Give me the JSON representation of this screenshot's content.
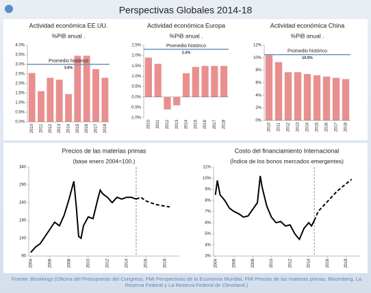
{
  "slide_title": "Perspectivas Globales 2014-18",
  "source": "Fuente: Brookings (Oficina del Presupuesto del Congreso, FMI Perspectivas de la Economía Mundial, FMI Precios de las materias primas, Bloomberg, La Reserva Federal y La Reserva Federal de Cleveland.)",
  "chart_data": [
    {
      "type": "bar",
      "title": "Actividad económica EE.UU.",
      "subtitle": "%PiB anual .",
      "categories": [
        "2010",
        "2011",
        "2012",
        "2013",
        "2014",
        "2015",
        "2016",
        "2017",
        "2018"
      ],
      "values": [
        2.55,
        1.6,
        2.3,
        2.2,
        1.45,
        3.45,
        3.45,
        2.75,
        2.3
      ],
      "color": "#e8908f",
      "ylim": [
        0,
        4
      ],
      "yticks": [
        {
          "value": 0,
          "label": "0.0%"
        },
        {
          "value": 0.5,
          "label": "0.5%"
        },
        {
          "value": 1,
          "label": "1.0%"
        },
        {
          "value": 1.5,
          "label": "1.5%"
        },
        {
          "value": 2,
          "label": "2.0%"
        },
        {
          "value": 2.5,
          "label": "2.5%"
        },
        {
          "value": 3,
          "label": "3.0%"
        },
        {
          "value": 3.5,
          "label": "3.5%"
        },
        {
          "value": 4,
          "label": "4.0%"
        }
      ],
      "reference": {
        "value": 3.0,
        "label": "Promedio histórico",
        "value_label": "3.0%",
        "color": "#6f8fc4"
      }
    },
    {
      "type": "bar",
      "title": "Actividad económica Europa",
      "subtitle": "%PiB anual .",
      "categories": [
        "2010",
        "2011",
        "2012",
        "2013",
        "2014",
        "2015",
        "2016",
        "2017",
        "2018"
      ],
      "values": [
        1.9,
        1.6,
        -0.6,
        -0.4,
        1.15,
        1.45,
        1.5,
        1.5,
        1.5
      ],
      "color": "#e8908f",
      "ylim": [
        -1,
        2.5
      ],
      "yticks": [
        {
          "value": -1,
          "label": "-1.0%"
        },
        {
          "value": -0.5,
          "label": "-0.5%"
        },
        {
          "value": 0,
          "label": "0.0%"
        },
        {
          "value": 0.5,
          "label": "0.5%"
        },
        {
          "value": 1,
          "label": "1.0%"
        },
        {
          "value": 1.5,
          "label": "1.5%"
        },
        {
          "value": 2,
          "label": "2.0%"
        },
        {
          "value": 2.5,
          "label": "2.5%"
        }
      ],
      "reference": {
        "value": 2.3,
        "label": "Promedio histórico",
        "value_label": "2.3%",
        "color": "#6f8fc4"
      }
    },
    {
      "type": "bar",
      "title": "Actividad económica China",
      "subtitle": "%PiB anual .",
      "categories": [
        "2010",
        "2011",
        "2012",
        "2013",
        "2014",
        "2015",
        "2016",
        "2017",
        "2018"
      ],
      "values": [
        10.4,
        9.3,
        7.7,
        7.7,
        7.4,
        7.2,
        7.0,
        6.8,
        6.6
      ],
      "color": "#e8908f",
      "ylim": [
        0,
        12
      ],
      "yticks": [
        {
          "value": 0,
          "label": "0%"
        },
        {
          "value": 2,
          "label": "2%"
        },
        {
          "value": 4,
          "label": "4%"
        },
        {
          "value": 6,
          "label": "6%"
        },
        {
          "value": 8,
          "label": "8%"
        },
        {
          "value": 10,
          "label": "10%"
        },
        {
          "value": 12,
          "label": "12%"
        }
      ],
      "reference": {
        "value": 10.5,
        "label": "Promedio histórico",
        "value_label": "10.5%",
        "color": "#6f8fc4"
      }
    },
    {
      "type": "line",
      "title": "Precios de las materias primas",
      "subtitle": "(base enero 2004=100.)",
      "x": [
        2004,
        2004.5,
        2005,
        2005.5,
        2006,
        2006.5,
        2007,
        2007.5,
        2008,
        2008.5,
        2008.75,
        2009,
        2009.25,
        2009.5,
        2010,
        2010.5,
        2011,
        2011.25,
        2011.5,
        2012,
        2012.5,
        2013,
        2013.5,
        2014,
        2014.5,
        2015,
        2015.5,
        2016,
        2017,
        2018,
        2018.5
      ],
      "series": [
        {
          "color": "#000000",
          "style": "solid",
          "values": [
            100,
            115,
            125,
            145,
            165,
            185,
            175,
            205,
            250,
            300,
            230,
            145,
            140,
            175,
            200,
            195,
            250,
            275,
            265,
            255,
            240,
            255,
            250,
            255,
            255,
            250,
            null,
            null,
            null,
            null,
            null
          ]
        },
        {
          "color": "#000000",
          "style": "dashed",
          "values": [
            null,
            null,
            null,
            null,
            null,
            null,
            null,
            null,
            null,
            null,
            null,
            null,
            null,
            null,
            null,
            null,
            null,
            null,
            null,
            null,
            null,
            null,
            null,
            null,
            null,
            250,
            255,
            245,
            235,
            230,
            228
          ]
        }
      ],
      "xlim": [
        2003.8,
        2019.5
      ],
      "xticks": [
        2004,
        2006,
        2008,
        2010,
        2012,
        2014,
        2016,
        2018
      ],
      "ylim": [
        90,
        340
      ],
      "yticks": [
        90,
        140,
        190,
        240,
        290,
        340
      ],
      "vline": 2015,
      "vline_color": "#6f8fc4"
    },
    {
      "type": "line",
      "title": "Costo del financiamiento Internacional",
      "subtitle": "(Índice de los bonos mercados emergentes)",
      "x": [
        2004,
        2004.2,
        2004.5,
        2005,
        2005.5,
        2006,
        2006.5,
        2007,
        2007.5,
        2008,
        2008.5,
        2008.8,
        2009,
        2009.5,
        2010,
        2010.5,
        2011,
        2011.5,
        2012,
        2012.5,
        2013,
        2013.5,
        2014,
        2014.3,
        2014.6,
        2015,
        2016,
        2017,
        2018,
        2018.6
      ],
      "series": [
        {
          "color": "#000000",
          "style": "solid",
          "values": [
            8.5,
            9.8,
            8.5,
            8.0,
            7.3,
            7.0,
            6.8,
            6.5,
            6.6,
            7.2,
            7.8,
            10.2,
            9.2,
            7.5,
            6.5,
            6.0,
            6.1,
            5.7,
            5.8,
            5.0,
            4.5,
            5.5,
            6.0,
            5.7,
            6.2,
            null,
            null,
            null,
            null,
            null
          ]
        },
        {
          "color": "#000000",
          "style": "dashed",
          "values": [
            null,
            null,
            null,
            null,
            null,
            null,
            null,
            null,
            null,
            null,
            null,
            null,
            null,
            null,
            null,
            null,
            null,
            null,
            null,
            null,
            null,
            null,
            null,
            null,
            6.2,
            7.0,
            7.9,
            8.8,
            9.5,
            9.9
          ]
        }
      ],
      "xlim": [
        2003.8,
        2019.5
      ],
      "xticks": [
        2004,
        2006,
        2008,
        2010,
        2012,
        2014,
        2016,
        2018
      ],
      "ylim": [
        3,
        11
      ],
      "yticks": [
        {
          "value": 3,
          "label": "3%"
        },
        {
          "value": 4,
          "label": "4%"
        },
        {
          "value": 5,
          "label": "5%"
        },
        {
          "value": 6,
          "label": "6%"
        },
        {
          "value": 7,
          "label": "7%"
        },
        {
          "value": 8,
          "label": "8%"
        },
        {
          "value": 9,
          "label": "9%"
        },
        {
          "value": 10,
          "label": "10%"
        },
        {
          "value": 11,
          "label": "11%"
        }
      ],
      "vline": 2014.6,
      "vline_color": "#6f8fc4"
    }
  ]
}
